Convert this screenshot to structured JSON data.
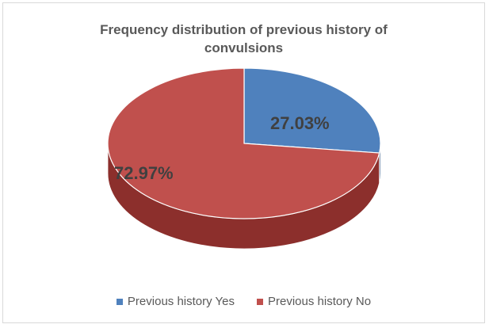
{
  "chart_data": {
    "type": "pie",
    "title_lines": [
      "Frequency distribution  of previous history of",
      "convulsions"
    ],
    "slices": [
      {
        "label": "Previous history Yes",
        "value": 27.03,
        "display": "27.03%",
        "color": "#4f81bd",
        "side_color": "#385d8a"
      },
      {
        "label": "Previous history No",
        "value": 72.97,
        "display": "72.97%",
        "color": "#c0504d",
        "side_color": "#8c2f2c"
      }
    ],
    "legend_position": "bottom",
    "style": "3d"
  }
}
